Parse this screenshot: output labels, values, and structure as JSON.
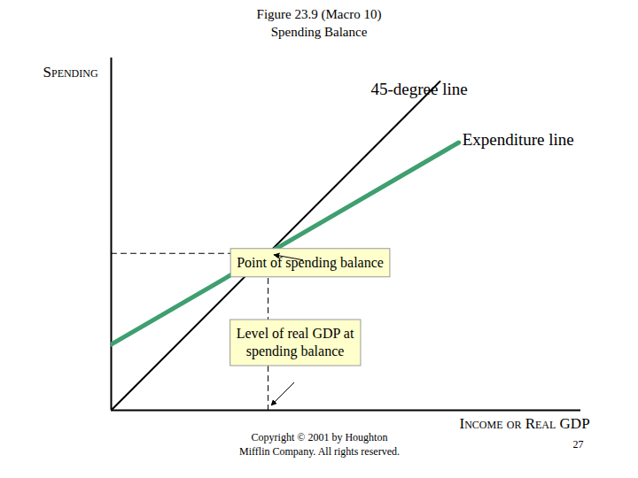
{
  "chart_data": {
    "type": "line",
    "title": "Figure 23.9 (Macro 10)",
    "subtitle": "Spending Balance",
    "x_label": "Income or Real GDP",
    "y_label": "Spending",
    "series": [
      {
        "name": "45-degree line",
        "color": "#000000",
        "x": [
          0,
          7
        ],
        "values": [
          0,
          7
        ]
      },
      {
        "name": "Expenditure line",
        "color": "#3f9f6f",
        "x": [
          0,
          7.4
        ],
        "values": [
          1.4,
          5.7
        ]
      }
    ],
    "balance": {
      "x": 3.34,
      "y": 3.34
    },
    "annotations": [
      {
        "text": "Point of spending balance",
        "x": 3.34,
        "y": 3.34
      },
      {
        "text": "Level of real GDP at\nspending balance",
        "x": 3.34,
        "y": 0
      }
    ],
    "xlim": [
      0,
      10
    ],
    "ylim": [
      0,
      7.5
    ],
    "tick_labels": false,
    "grid": false,
    "caption": "Copyright © 2001 by Houghton\nMifflin Company. All rights reserved.",
    "page_number": 27
  }
}
